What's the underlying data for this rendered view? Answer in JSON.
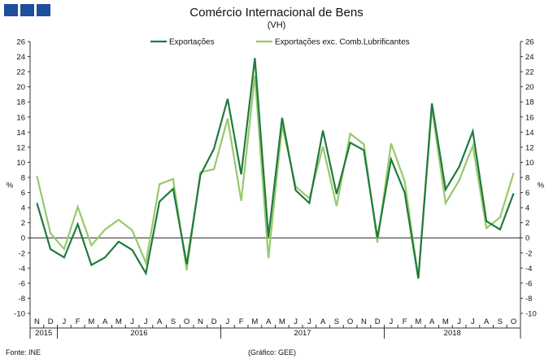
{
  "chart_data": {
    "type": "line",
    "title": "Comércio Internacional de Bens",
    "subtitle": "(VH)",
    "ylabel_left": "%",
    "ylabel_right": "%",
    "ylim": [
      -10,
      26
    ],
    "ytick_step": 2,
    "grid": false,
    "legend_position": "top",
    "x": [
      "N",
      "D",
      "J",
      "F",
      "M",
      "A",
      "M",
      "J",
      "J",
      "A",
      "S",
      "O",
      "N",
      "D",
      "J",
      "F",
      "M",
      "A",
      "M",
      "J",
      "J",
      "A",
      "S",
      "O",
      "N",
      "D",
      "J",
      "F",
      "M",
      "A",
      "M",
      "J",
      "J",
      "A",
      "S",
      "O"
    ],
    "year_groups": [
      {
        "label": "2015",
        "start": 0,
        "end": 1
      },
      {
        "label": "2016",
        "start": 2,
        "end": 13
      },
      {
        "label": "2017",
        "start": 14,
        "end": 25
      },
      {
        "label": "2018",
        "start": 26,
        "end": 35
      }
    ],
    "series": [
      {
        "name": "Exportações",
        "color": "#1e7b3c",
        "width": 2.2,
        "values": [
          4.6,
          -1.5,
          -2.6,
          1.8,
          -3.6,
          -2.6,
          -0.5,
          -1.6,
          -4.7,
          4.8,
          6.5,
          -3.5,
          8.3,
          11.8,
          18.4,
          8.4,
          23.8,
          0.1,
          15.9,
          6.3,
          4.6,
          14.2,
          5.8,
          12.6,
          11.6,
          0.0,
          10.4,
          6.0,
          -5.4,
          17.8,
          6.4,
          9.4,
          14.1,
          2.2,
          1.1,
          5.9
        ]
      },
      {
        "name": "Exportações exc. Comb.Lubrificantes",
        "color": "#97c96b",
        "width": 2.2,
        "values": [
          8.2,
          0.6,
          -1.5,
          4.1,
          -1.0,
          1.1,
          2.4,
          1.0,
          -3.3,
          7.1,
          7.8,
          -4.3,
          8.7,
          9.1,
          15.8,
          4.9,
          21.5,
          -2.7,
          14.9,
          6.8,
          5.2,
          12.1,
          4.2,
          13.8,
          12.4,
          -0.6,
          12.5,
          7.5,
          -5.3,
          17.2,
          4.6,
          7.6,
          12.2,
          1.3,
          2.7,
          8.6
        ]
      }
    ]
  },
  "header": {
    "title": "Comércio Internacional de Bens",
    "subtitle": "(VH)"
  },
  "footer": {
    "source": "Fonte: INE",
    "credit": "(Gráfico: GEE)"
  }
}
